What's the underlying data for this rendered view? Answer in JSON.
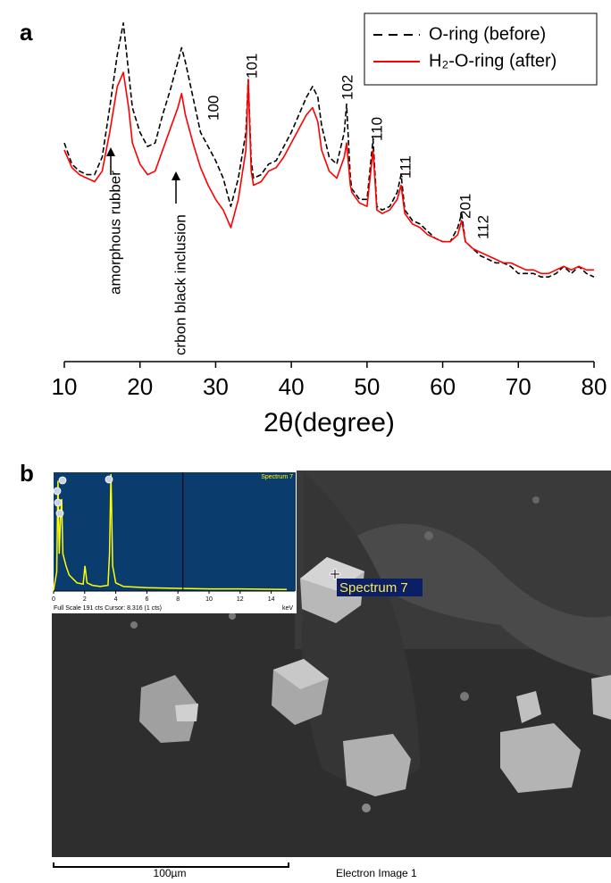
{
  "panel_labels": [
    "a",
    "b"
  ],
  "chart_data": [
    {
      "type": "line",
      "xlabel": "2θ(degree)",
      "x": [
        10,
        11,
        12,
        13,
        14,
        15,
        16,
        17,
        17.8,
        18.5,
        19,
        20,
        21,
        22,
        23,
        24,
        25,
        25.5,
        26,
        27,
        28,
        29,
        30,
        31,
        32,
        33,
        34,
        34.3,
        34.7,
        35,
        36,
        37,
        38,
        39,
        40,
        41,
        42,
        42.8,
        43.5,
        44,
        45,
        46,
        47,
        47.3,
        47.8,
        48,
        49,
        50,
        50.8,
        51.3,
        52,
        53,
        54,
        54.5,
        55,
        56,
        57,
        58,
        59,
        60,
        61,
        62,
        62.5,
        63,
        64,
        65,
        66,
        67,
        68,
        69,
        70,
        71,
        72,
        73,
        74,
        75,
        76,
        77,
        78,
        79,
        80
      ],
      "series": [
        {
          "name": "O-ring (before)",
          "color": "#000000",
          "dash": true,
          "values": [
            62,
            56,
            54,
            53,
            53,
            58,
            72,
            87,
            96,
            82,
            72,
            65,
            61,
            62,
            70,
            77,
            85,
            89,
            85,
            75,
            65,
            61,
            57,
            52,
            44,
            52,
            65,
            80,
            57,
            52,
            53,
            56,
            57,
            61,
            65,
            70,
            75,
            78,
            75,
            67,
            58,
            56,
            65,
            73,
            52,
            49,
            46,
            46,
            63,
            44,
            43,
            44,
            48,
            53,
            43,
            40,
            39,
            37,
            35,
            34,
            34,
            38,
            42,
            34,
            32,
            30,
            29,
            28,
            28,
            27,
            25,
            25,
            25,
            24,
            24,
            25,
            27,
            25,
            27,
            25,
            24
          ]
        },
        {
          "name": "H₂-O-ring (after)",
          "color": "#ff0000",
          "dash": false,
          "values": [
            60,
            55,
            53,
            52,
            51,
            54,
            65,
            78,
            82,
            72,
            62,
            56,
            53,
            54,
            60,
            66,
            72,
            76,
            70,
            62,
            55,
            50,
            46,
            43,
            38,
            46,
            60,
            80,
            54,
            50,
            51,
            54,
            55,
            58,
            62,
            66,
            70,
            72,
            68,
            60,
            54,
            52,
            58,
            62,
            50,
            48,
            45,
            44,
            60,
            43,
            42,
            43,
            46,
            50,
            42,
            39,
            38,
            36,
            35,
            34,
            34,
            36,
            40,
            34,
            32,
            31,
            30,
            29,
            28,
            28,
            27,
            26,
            26,
            25,
            25,
            26,
            27,
            26,
            27,
            26,
            26
          ]
        }
      ],
      "xlim": [
        10,
        80
      ],
      "xticks": [
        10,
        20,
        30,
        40,
        50,
        60,
        70,
        80
      ],
      "ylim": [
        0,
        100
      ],
      "legend": "upper right",
      "peak_labels": [
        "100",
        "101",
        "102",
        "110",
        "111",
        "201",
        "112"
      ],
      "arrow_labels": [
        "amorphous rubber",
        "crbon black inclusion"
      ]
    },
    {
      "type": "area",
      "title": "Spectrum 7",
      "footer": "Full Scale 191 cts Cursor: 8.316 (1 cts)",
      "xlabel": "keV",
      "x": [
        0,
        0.2,
        0.28,
        0.36,
        0.45,
        0.52,
        0.6,
        0.8,
        1,
        1.5,
        1.9,
        2.02,
        2.15,
        2.5,
        3,
        3.5,
        3.6,
        3.69,
        3.8,
        4,
        4.5,
        6,
        8,
        10,
        12,
        15
      ],
      "values": [
        0,
        30,
        180,
        60,
        120,
        150,
        60,
        40,
        25,
        12,
        10,
        40,
        12,
        8,
        6,
        8,
        60,
        191,
        40,
        12,
        6,
        4,
        3,
        2,
        2,
        1
      ],
      "color": "#ffff00",
      "cursor": 8.316,
      "xlim": [
        0,
        15
      ],
      "xticks": [
        0,
        2,
        4,
        6,
        8,
        10,
        12,
        14
      ],
      "ylim": [
        0,
        191
      ]
    }
  ],
  "sem_image": {
    "marker_label": "Spectrum 7",
    "scale_bar": "100µm",
    "caption": "Electron Image 1"
  }
}
